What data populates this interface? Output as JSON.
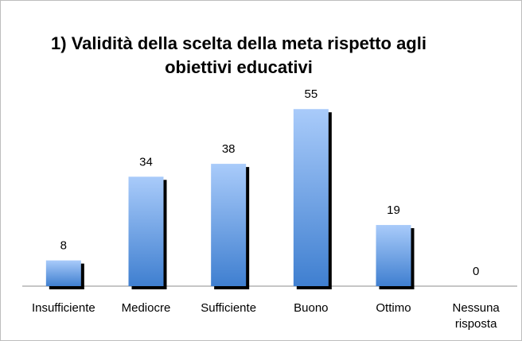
{
  "chart_data": {
    "type": "bar",
    "title": "1) Validità della scelta della meta rispetto agli obiettivi educativi",
    "categories": [
      "Insufficiente",
      "Mediocre",
      "Sufficiente",
      "Buono",
      "Ottimo",
      "Nessuna risposta"
    ],
    "values": [
      8,
      34,
      38,
      55,
      19,
      0
    ],
    "color": "#3f7fd0",
    "ylim": [
      0,
      60
    ]
  }
}
